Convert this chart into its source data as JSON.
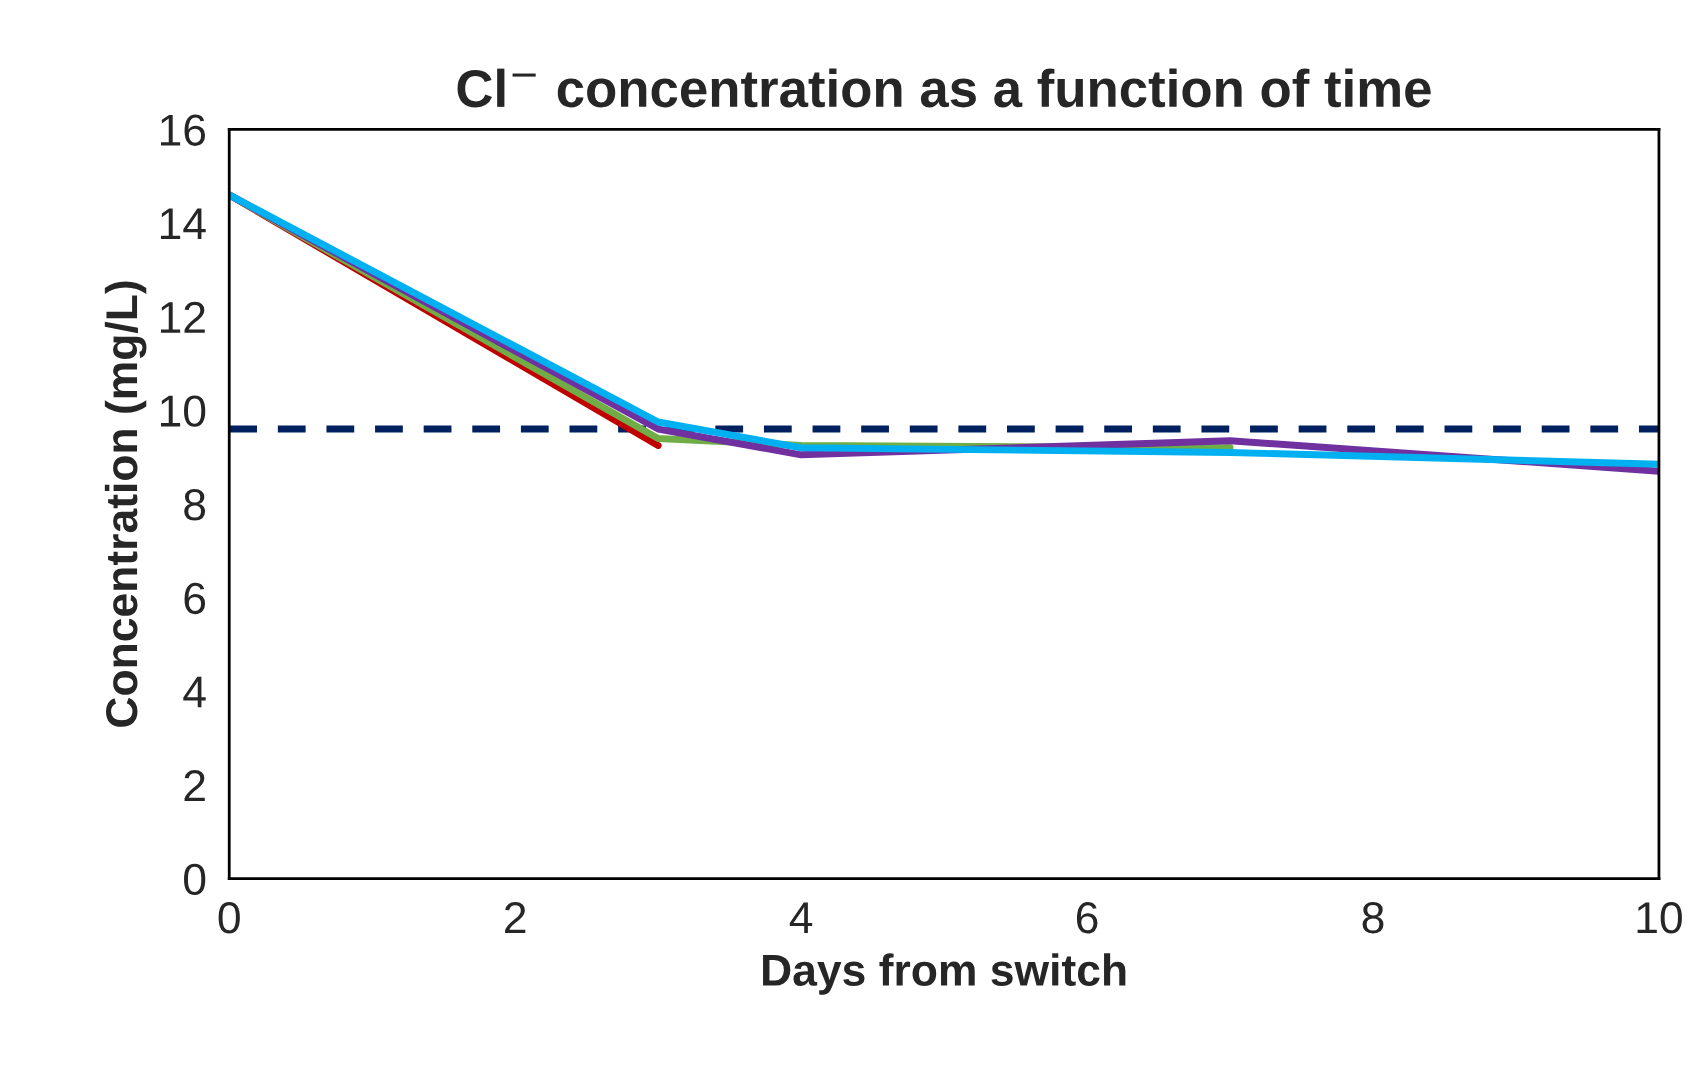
{
  "chart_data": {
    "type": "line",
    "title": "Cl$^{−}$ concentration as a function of time",
    "xlabel": "Days from switch",
    "ylabel": "Concentration (mg/L)",
    "xlim": [
      0,
      10
    ],
    "xticks": [
      0,
      2,
      4,
      6,
      8,
      10
    ],
    "ylim": [
      0,
      16
    ],
    "yticks": [
      0,
      2,
      4,
      6,
      8,
      10,
      12,
      14,
      16
    ],
    "grid": false,
    "marker": "none",
    "line_style": "solid",
    "series": [
      {
        "color": "#c00000",
        "x": [
          0,
          3
        ],
        "values": [
          14.6,
          9.25
        ]
      },
      {
        "color": "#70ad47",
        "x": [
          0,
          3,
          4,
          7
        ],
        "values": [
          14.6,
          9.4,
          9.25,
          9.2
        ]
      },
      {
        "color": "#7030a0",
        "x": [
          0,
          3,
          4,
          7,
          10
        ],
        "values": [
          14.6,
          9.6,
          9.05,
          9.35,
          8.7
        ]
      },
      {
        "color": "#00b0f0",
        "x": [
          0,
          3,
          4,
          7,
          10
        ],
        "values": [
          14.6,
          9.75,
          9.2,
          9.1,
          8.85
        ]
      }
    ],
    "ref_lines": [
      {
        "axis": "y",
        "value": 9.6,
        "color": "#002060",
        "line_style": "dashed"
      }
    ]
  }
}
